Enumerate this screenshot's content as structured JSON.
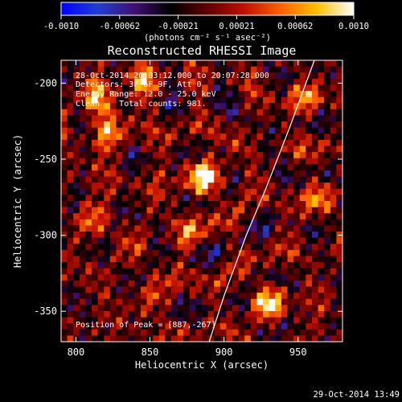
{
  "colorbar": {
    "ticks": [
      "-0.0010",
      "-0.00062",
      "-0.00021",
      "0.00021",
      "0.00062",
      "0.0010"
    ],
    "unit_label": "(photons cm⁻² s⁻¹ asec⁻²)",
    "colors": [
      "#0000ff",
      "#2040d0",
      "#401070",
      "#000000",
      "#600000",
      "#c01000",
      "#ff6000",
      "#ffc000",
      "#ffffff"
    ]
  },
  "chart_data": {
    "type": "heatmap",
    "title": "Reconstructed RHESSI Image",
    "xlabel": "Heliocentric X (arcsec)",
    "ylabel": "Heliocentric Y (arcsec)",
    "xlim": [
      790,
      980
    ],
    "ylim": [
      -370,
      -185
    ],
    "x_ticks": [
      800,
      850,
      900,
      950
    ],
    "y_ticks": [
      -200,
      -250,
      -300,
      -350
    ],
    "annotations": [
      "28-Oct-2014 20:03:12.000 to 20:07:28.000",
      "Detectors: 3F 6F 9F, Att 0",
      "Energy Range: 12.0 - 25.0 keV",
      "Clean    Total counts: 981."
    ],
    "peak_label": "Position of Peak = [887,-267]",
    "peak": [
      887,
      -267
    ],
    "limb_curve": [
      [
        961,
        -185
      ],
      [
        944,
        -230
      ],
      [
        928,
        -270
      ],
      [
        915,
        -300
      ],
      [
        900,
        -340
      ],
      [
        890,
        -370
      ]
    ],
    "sources": [
      {
        "x": 815,
        "y": -210,
        "amp": 0.65
      },
      {
        "x": 820,
        "y": -232,
        "amp": 0.6
      },
      {
        "x": 845,
        "y": -195,
        "amp": 0.5
      },
      {
        "x": 887,
        "y": -262,
        "amp": 1.0
      },
      {
        "x": 875,
        "y": -300,
        "amp": 0.4
      },
      {
        "x": 812,
        "y": -290,
        "amp": 0.45
      },
      {
        "x": 930,
        "y": -345,
        "amp": 0.8
      },
      {
        "x": 955,
        "y": -210,
        "amp": 0.55
      },
      {
        "x": 965,
        "y": -275,
        "amp": 0.5
      },
      {
        "x": 850,
        "y": -340,
        "amp": 0.35
      }
    ]
  },
  "footer": {
    "timestamp": "29-Oct-2014 13:49"
  }
}
